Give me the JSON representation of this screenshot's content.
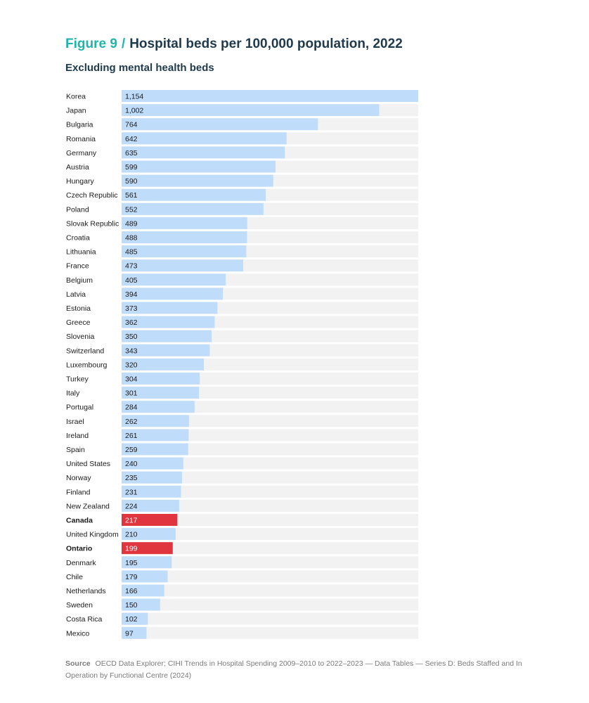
{
  "header": {
    "figure_label": "Figure 9",
    "separator": "/",
    "title": "Hospital beds per 100,000 population, 2022",
    "subtitle": "Excluding mental health beds"
  },
  "colors": {
    "default_bar": "#bfdcfb",
    "highlight_bar": "#e0343f",
    "track": "#f2f2f2",
    "accent": "#1fb5ad"
  },
  "chart_data": {
    "type": "bar",
    "orientation": "horizontal",
    "title": "Hospital beds per 100,000 population, 2022",
    "subtitle": "Excluding mental health beds",
    "xlim": [
      0,
      1154
    ],
    "grid": false,
    "categories": [
      "Korea",
      "Japan",
      "Bulgaria",
      "Romania",
      "Germany",
      "Austria",
      "Hungary",
      "Czech Republic",
      "Poland",
      "Slovak Republic",
      "Croatia",
      "Lithuania",
      "France",
      "Belgium",
      "Latvia",
      "Estonia",
      "Greece",
      "Slovenia",
      "Switzerland",
      "Luxembourg",
      "Turkey",
      "Italy",
      "Portugal",
      "Israel",
      "Ireland",
      "Spain",
      "United States",
      "Norway",
      "Finland",
      "New Zealand",
      "Canada",
      "United Kingdom",
      "Ontario",
      "Denmark",
      "Chile",
      "Netherlands",
      "Sweden",
      "Costa Rica",
      "Mexico"
    ],
    "values": [
      1154,
      1002,
      764,
      642,
      635,
      599,
      590,
      561,
      552,
      489,
      488,
      485,
      473,
      405,
      394,
      373,
      362,
      350,
      343,
      320,
      304,
      301,
      284,
      262,
      261,
      259,
      240,
      235,
      231,
      224,
      217,
      210,
      199,
      195,
      179,
      166,
      150,
      102,
      97
    ],
    "value_labels": [
      "1,154",
      "1,002",
      "764",
      "642",
      "635",
      "599",
      "590",
      "561",
      "552",
      "489",
      "488",
      "485",
      "473",
      "405",
      "394",
      "373",
      "362",
      "350",
      "343",
      "320",
      "304",
      "301",
      "284",
      "262",
      "261",
      "259",
      "240",
      "235",
      "231",
      "224",
      "217",
      "210",
      "199",
      "195",
      "179",
      "166",
      "150",
      "102",
      "97"
    ],
    "highlighted": [
      "Canada",
      "Ontario"
    ]
  },
  "source": {
    "label": "Source",
    "text": "OECD Data Explorer; CIHI Trends in Hospital Spending 2009–2010 to 2022–2023 — Data Tables — Series D: Beds Staffed and In Operation by Functional Centre (2024)"
  }
}
